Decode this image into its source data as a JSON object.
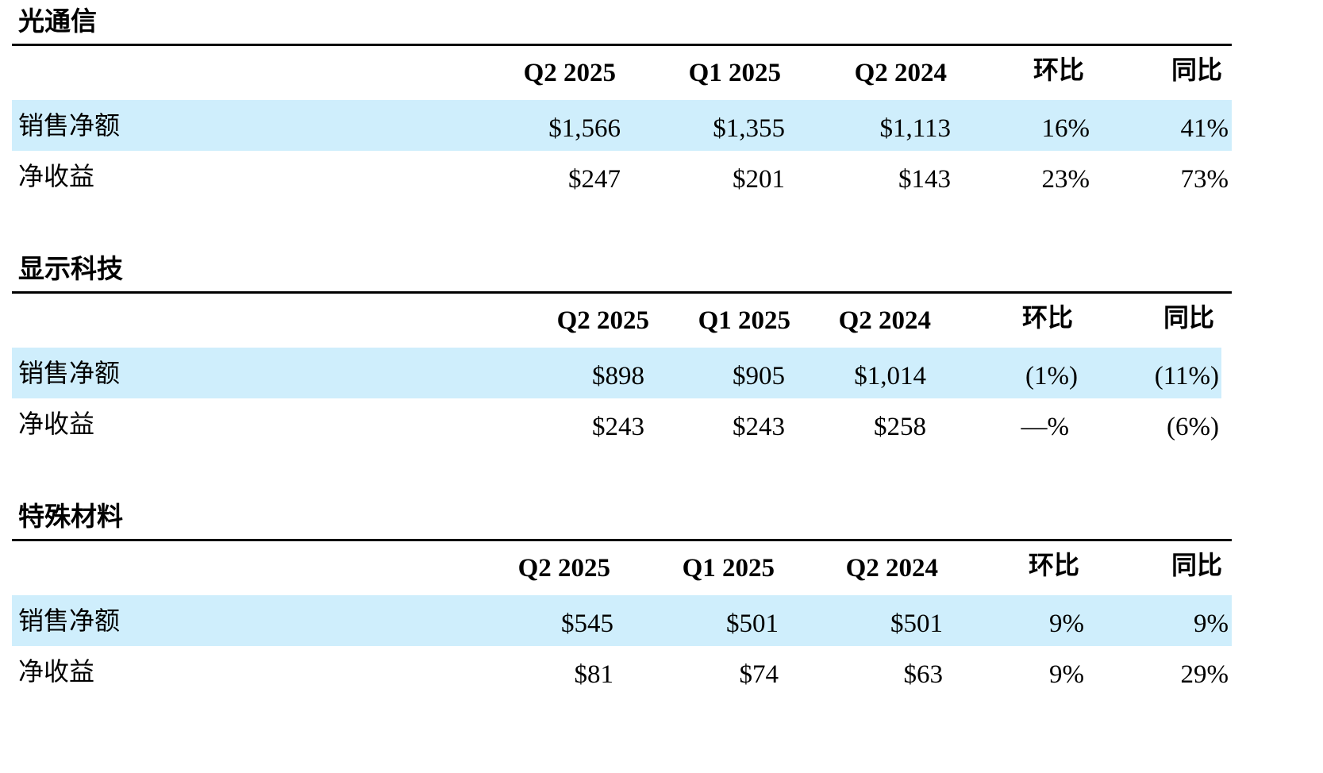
{
  "colors": {
    "highlight_row": "#cfeefc",
    "rule": "#000000"
  },
  "sections": [
    {
      "title": "光通信",
      "headers": [
        "Q2 2025",
        "Q1 2025",
        "Q2 2024",
        "环比",
        "同比"
      ],
      "rows": [
        {
          "label": "销售净额",
          "values": [
            "$1,566",
            "$1,355",
            "$1,113",
            "16%",
            "41%"
          ]
        },
        {
          "label": "净收益",
          "values": [
            "$247",
            "$201",
            "$143",
            "23%",
            "73%"
          ]
        }
      ]
    },
    {
      "title": "显示科技",
      "headers": [
        "Q2 2025",
        "Q1 2025",
        "Q2 2024",
        "环比",
        "同比"
      ],
      "rows": [
        {
          "label": "销售净额",
          "values": [
            "$898",
            "$905",
            "$1,014",
            "(1%)",
            "(11%)"
          ]
        },
        {
          "label": "净收益",
          "values": [
            "$243",
            "$243",
            "$258",
            "—%",
            "(6%)"
          ]
        }
      ]
    },
    {
      "title": "特殊材料",
      "headers": [
        "Q2 2025",
        "Q1 2025",
        "Q2 2024",
        "环比",
        "同比"
      ],
      "rows": [
        {
          "label": "销售净额",
          "values": [
            "$545",
            "$501",
            "$501",
            "9%",
            "9%"
          ]
        },
        {
          "label": "净收益",
          "values": [
            "$81",
            "$74",
            "$63",
            "9%",
            "29%"
          ]
        }
      ]
    }
  ]
}
